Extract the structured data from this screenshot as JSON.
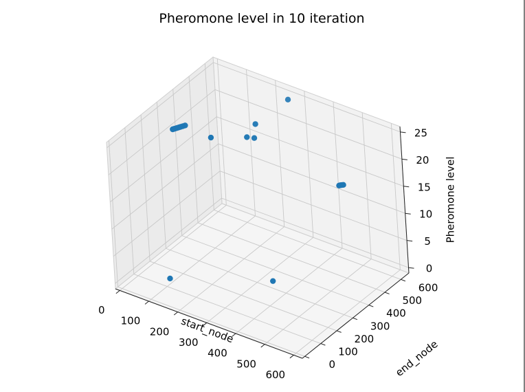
{
  "chart_data": {
    "type": "scatter3d",
    "title": "Pheromone level in 10 iteration",
    "xlabel": "start_node",
    "ylabel": "end_node",
    "zlabel": "Pheromone level",
    "xlim": [
      -15,
      630
    ],
    "ylim": [
      -15,
      650
    ],
    "zlim": [
      -1,
      26
    ],
    "x_ticks": [
      "0",
      "100",
      "200",
      "300",
      "400",
      "500",
      "600"
    ],
    "y_ticks": [
      "0",
      "100",
      "200",
      "300",
      "400",
      "500",
      "600"
    ],
    "z_ticks": [
      "0",
      "5",
      "10",
      "15",
      "20",
      "25"
    ],
    "color": "#1f77b4",
    "grid": true,
    "points": [
      {
        "x": 2,
        "y": 355,
        "z": 20
      },
      {
        "x": 4,
        "y": 360,
        "z": 20
      },
      {
        "x": 6,
        "y": 365,
        "z": 20
      },
      {
        "x": 8,
        "y": 370,
        "z": 20
      },
      {
        "x": 10,
        "y": 375,
        "z": 20
      },
      {
        "x": 12,
        "y": 380,
        "z": 20
      },
      {
        "x": 14,
        "y": 385,
        "z": 20
      },
      {
        "x": 17,
        "y": 392,
        "z": 20
      },
      {
        "x": 20,
        "y": 400,
        "z": 20
      },
      {
        "x": 150,
        "y": 330,
        "z": 22
      },
      {
        "x": 200,
        "y": 460,
        "z": 20
      },
      {
        "x": 220,
        "y": 470,
        "z": 20
      },
      {
        "x": 215,
        "y": 490,
        "z": 22
      },
      {
        "x": 270,
        "y": 600,
        "z": 25
      },
      {
        "x": 610,
        "y": 300,
        "z": 23
      },
      {
        "x": 612,
        "y": 304,
        "z": 23
      },
      {
        "x": 615,
        "y": 308,
        "z": 23
      },
      {
        "x": 618,
        "y": 312,
        "z": 23
      },
      {
        "x": 100,
        "y": 120,
        "z": 0
      },
      {
        "x": 350,
        "y": 310,
        "z": 0
      }
    ]
  }
}
